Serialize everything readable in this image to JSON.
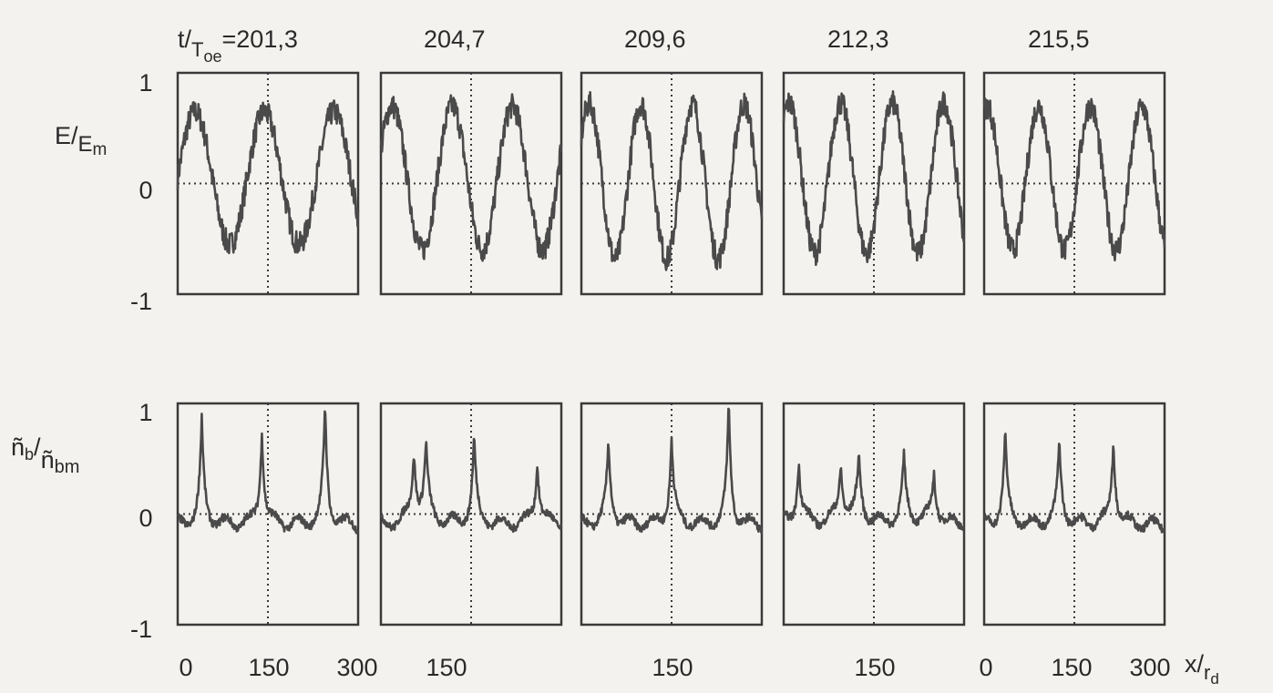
{
  "time_label": {
    "prefix": "t/",
    "sub": "T",
    "subsub": "oe",
    "eq": "="
  },
  "panel_times": [
    "201,3",
    "204,7",
    "209,6",
    "212,3",
    "215,5"
  ],
  "row_labels": {
    "E": {
      "main": "E/",
      "sub": "E",
      "subsub": "m"
    },
    "n": {
      "main": "ñ",
      "sub1": "b",
      "slash": "/",
      "main2": "ñ",
      "sub2": "bm"
    }
  },
  "y_ticks": [
    "1",
    "0",
    "-1"
  ],
  "x_tick_labels": [
    "0",
    "150",
    "300",
    "150",
    "150",
    "150",
    "0",
    "150",
    "300"
  ],
  "x_axis_label": {
    "main": "x/",
    "sub": "r",
    "subsub": "d"
  },
  "chart_data": {
    "type": "line",
    "panels_per_row": 5,
    "rows": [
      "E/Em",
      "ñb/ñbm"
    ],
    "xlim": [
      0,
      300
    ],
    "ylim": [
      -1,
      1
    ],
    "x_marker": 150,
    "zero_line": true,
    "E_waves": {
      "amplitude": [
        0.6,
        0.65,
        0.7,
        0.68,
        0.65
      ],
      "offset": [
        0.05,
        0.05,
        0.02,
        0.05,
        0.05
      ],
      "periods": [
        2.6,
        3.0,
        3.5,
        3.5,
        3.5
      ],
      "phase": [
        0.0,
        0.4,
        0.6,
        0.9,
        1.2
      ]
    },
    "n_spikes": {
      "positions": [
        [
          40,
          140,
          245
        ],
        [
          55,
          75,
          155,
          260
        ],
        [
          45,
          150,
          245
        ],
        [
          25,
          95,
          125,
          200,
          250
        ],
        [
          35,
          125,
          215
        ]
      ],
      "heights": [
        [
          0.8,
          0.75,
          0.95
        ],
        [
          0.5,
          0.55,
          0.65,
          0.45
        ],
        [
          0.6,
          0.65,
          0.95
        ],
        [
          0.45,
          0.4,
          0.45,
          0.45,
          0.3
        ],
        [
          0.7,
          0.6,
          0.65
        ]
      ],
      "baseline": -0.1
    }
  }
}
